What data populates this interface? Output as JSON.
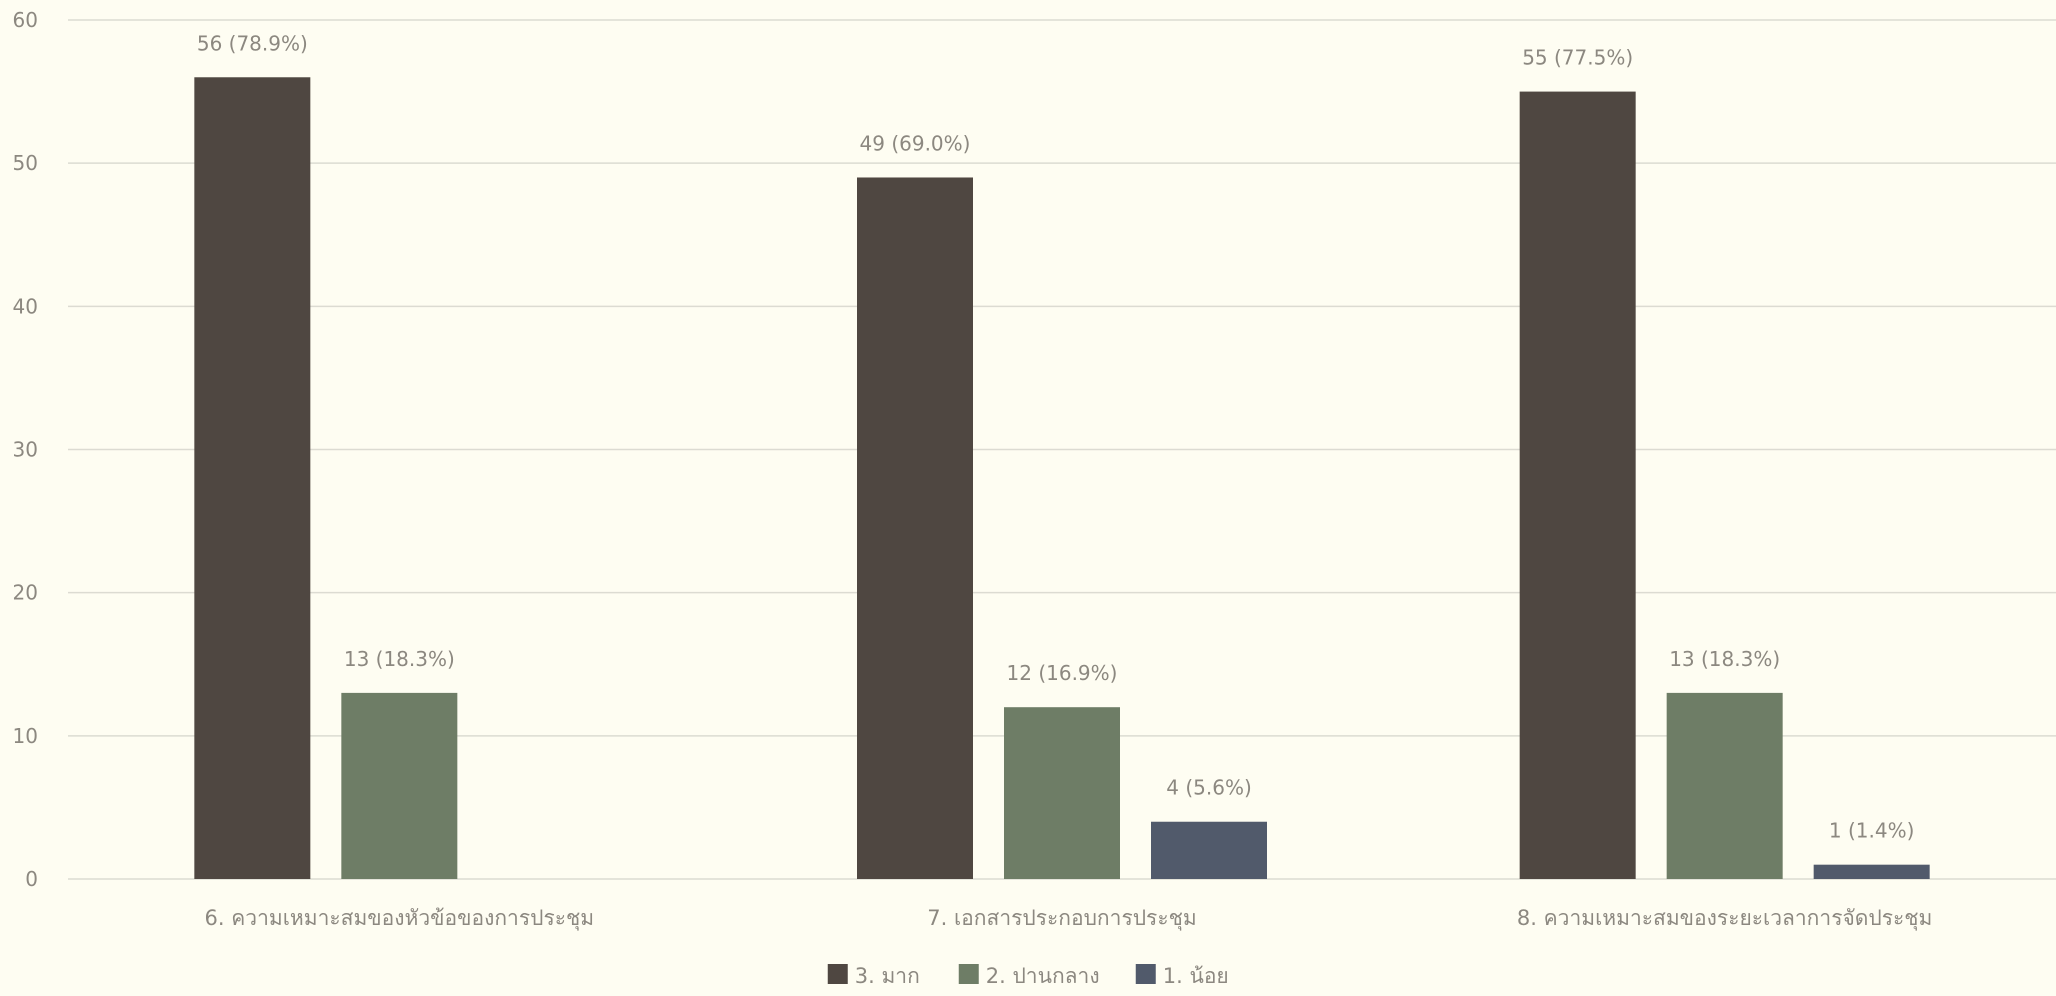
{
  "chart_data": {
    "type": "bar",
    "categories": [
      "6. ความเหมาะสมของหัวข้อของการประชุม",
      "7. เอกสารประกอบการประชุม",
      "8. ความเหมาะสมของระยะเวลาการจัดประชุม"
    ],
    "series": [
      {
        "name": "3. มาก",
        "color": "#4f4741",
        "values": [
          56,
          49,
          55
        ],
        "labels": [
          "56 (78.9%)",
          "49 (69.0%)",
          "55 (77.5%)"
        ]
      },
      {
        "name": "2. ปานกลาง",
        "color": "#6e7d66",
        "values": [
          13,
          12,
          13
        ],
        "labels": [
          "13 (18.3%)",
          "12 (16.9%)",
          "13 (18.3%)"
        ]
      },
      {
        "name": "1. น้อย",
        "color": "#515a6b",
        "values": [
          0,
          4,
          1
        ],
        "labels": [
          "",
          "4 (5.6%)",
          "1 (1.4%)"
        ]
      }
    ],
    "ylim": [
      0,
      60
    ],
    "yticks": [
      0,
      10,
      20,
      30,
      40,
      50,
      60
    ],
    "grid": true,
    "legend_position": "bottom-center"
  }
}
